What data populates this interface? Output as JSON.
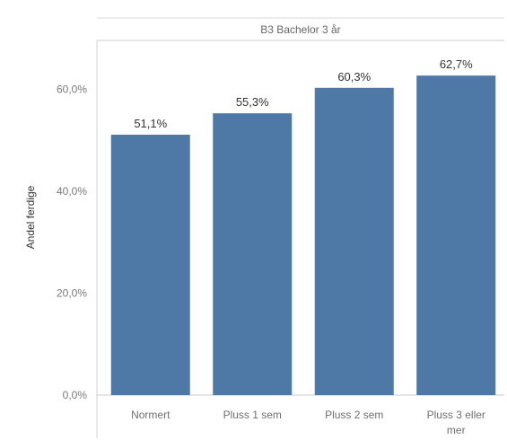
{
  "page_title": "",
  "chart_data": {
    "type": "bar",
    "title": "",
    "panel_label": "B3 Bachelor 3 år",
    "categories": [
      "Normert",
      "Pluss 1 sem",
      "Pluss 2 sem",
      "Pluss 3 eller mer"
    ],
    "category_lines": [
      [
        "Normert"
      ],
      [
        "Pluss 1 sem"
      ],
      [
        "Pluss 2 sem"
      ],
      [
        "Pluss 3 eller",
        "mer"
      ]
    ],
    "values": [
      51.1,
      55.3,
      60.3,
      62.7
    ],
    "value_labels": [
      "51,1%",
      "55,3%",
      "60,3%",
      "62,7%"
    ],
    "ylabel": "Andel ferdige",
    "xlabel": "",
    "ylim": [
      0,
      70
    ],
    "yticks": [
      {
        "value": 0,
        "label": "0,0%"
      },
      {
        "value": 20,
        "label": "20,0%"
      },
      {
        "value": 40,
        "label": "40,0%"
      },
      {
        "value": 60,
        "label": "60,0%"
      }
    ],
    "grid": false,
    "legend": "none",
    "bar_color": "#4e79a7"
  }
}
